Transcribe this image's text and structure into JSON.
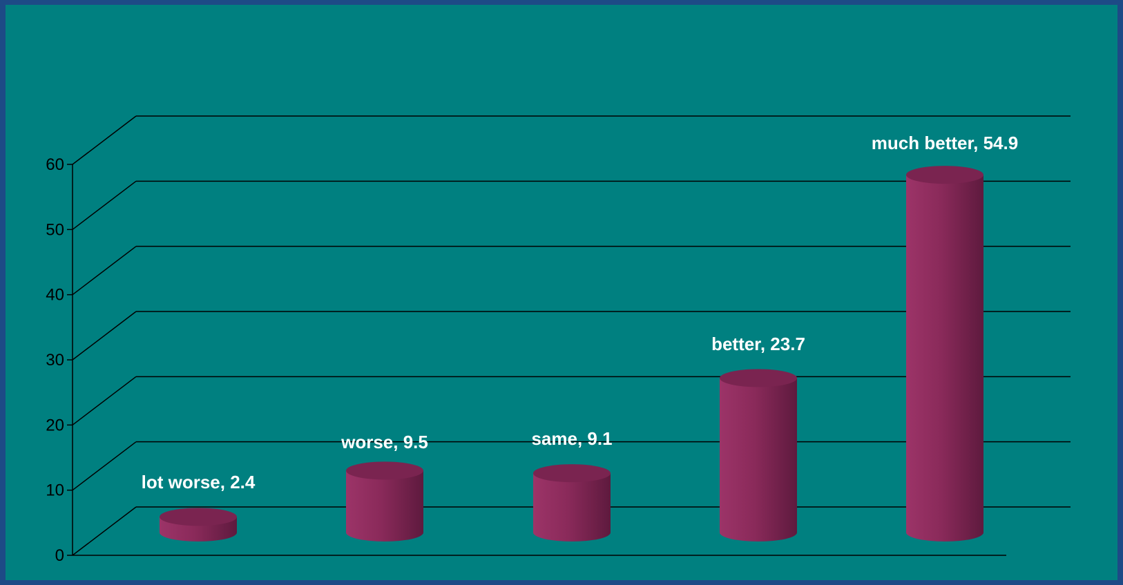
{
  "chart_data": {
    "type": "bar",
    "style": "3d-cylinder",
    "categories": [
      "lot worse",
      "worse",
      "same",
      "better",
      "much better"
    ],
    "values": [
      2.4,
      9.5,
      9.1,
      23.7,
      54.9
    ],
    "data_labels": [
      "lot worse, 2.4",
      "worse, 9.5",
      "same, 9.1",
      "better, 23.7",
      "much better, 54.9"
    ],
    "y_ticks": [
      "0",
      "10",
      "20",
      "30",
      "40",
      "50",
      "60"
    ],
    "ylim": [
      0,
      60
    ],
    "grid": true,
    "legend": false,
    "colors": {
      "background": "#008080",
      "border": "#1d4a86",
      "bar": "#8e2a5c",
      "grid": "#000000",
      "label": "#ffffff"
    }
  }
}
